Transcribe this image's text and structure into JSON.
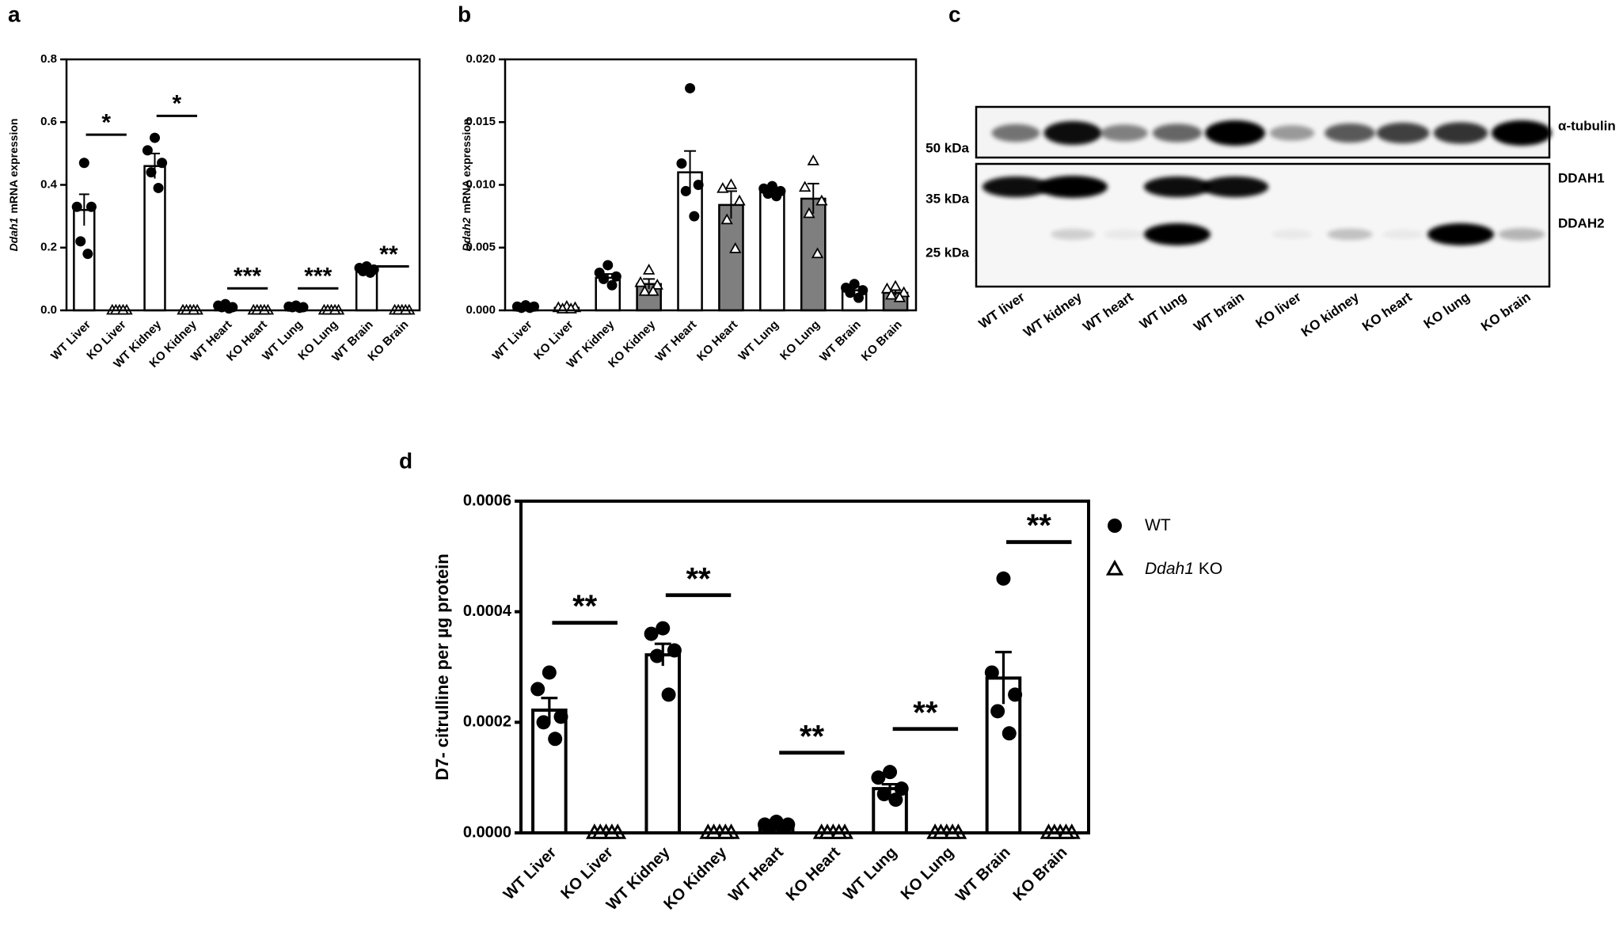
{
  "chart_data": [
    {
      "type": "bar",
      "panel": "a",
      "ylabel": {
        "italic": "Ddah1",
        "text": "mRNA expression"
      },
      "categories": [
        "WT Liver",
        "KO Liver",
        "WT Kidney",
        "KO Kidney",
        "WT Heart",
        "KO Heart",
        "WT Lung",
        "KO Lung",
        "WT Brain",
        "KO Brain"
      ],
      "values": [
        0.32,
        0,
        0.46,
        0,
        0.012,
        0,
        0.011,
        0,
        0.13,
        0
      ],
      "errors": [
        0.05,
        0,
        0.04,
        0,
        0.003,
        0,
        0.002,
        0,
        0.004,
        0
      ],
      "points": [
        [
          0.47,
          0.33,
          0.33,
          0.22,
          0.18
        ],
        [
          0,
          0,
          0,
          0,
          0
        ],
        [
          0.55,
          0.51,
          0.47,
          0.44,
          0.39
        ],
        [
          0,
          0,
          0,
          0,
          0
        ],
        [
          0.02,
          0.015,
          0.01,
          0.01,
          0.006
        ],
        [
          0,
          0,
          0,
          0,
          0
        ],
        [
          0.015,
          0.012,
          0.01,
          0.01,
          0.008
        ],
        [
          0,
          0,
          0,
          0,
          0
        ],
        [
          0.14,
          0.135,
          0.13,
          0.125,
          0.12
        ],
        [
          0,
          0,
          0,
          0,
          0
        ]
      ],
      "bar_colors": [
        "#ffffff",
        "#ffffff",
        "#ffffff",
        "#ffffff",
        "#ffffff",
        "#ffffff",
        "#ffffff",
        "#ffffff",
        "#ffffff",
        "#ffffff"
      ],
      "markers": [
        "circle",
        "triangle",
        "circle",
        "triangle",
        "circle",
        "triangle",
        "circle",
        "triangle",
        "circle",
        "triangle"
      ],
      "significance": [
        "*",
        "*",
        "***",
        "***",
        "**"
      ],
      "significance_y": [
        0.56,
        0.62,
        0.07,
        0.07,
        0.14
      ],
      "ylim": [
        0,
        0.8
      ],
      "yticks": [
        {
          "value": 0,
          "label": "0.0"
        },
        0.2,
        0.4,
        0.6,
        0.8
      ]
    },
    {
      "type": "bar",
      "panel": "b",
      "ylabel": {
        "italic": "Ddah2",
        "text": "mRNA expression"
      },
      "categories": [
        "WT Liver",
        "KO Liver",
        "WT Kidney",
        "KO Kidney",
        "WT Heart",
        "KO Heart",
        "WT Lung",
        "KO Lung",
        "WT Brain",
        "KO Brain"
      ],
      "values": [
        0.0003,
        0.0002,
        0.0026,
        0.0021,
        0.011,
        0.0084,
        0.0095,
        0.0089,
        0.0016,
        0.0014
      ],
      "errors": [
        0.0001,
        0.0001,
        0.0003,
        0.0004,
        0.0017,
        0.0011,
        0.0003,
        0.0012,
        0.0003,
        0.0002
      ],
      "points": [
        [
          0.0004,
          0.0003,
          0.0003,
          0.0002,
          0.0002
        ],
        [
          0.0003,
          0.0002,
          0.0002,
          0.0001,
          0.0001
        ],
        [
          0.0036,
          0.003,
          0.0027,
          0.0025,
          0.002
        ],
        [
          0.0032,
          0.0022,
          0.002,
          0.0015,
          0.0015
        ],
        [
          0.0177,
          0.0117,
          0.01,
          0.0095,
          0.0075
        ],
        [
          0.01,
          0.0097,
          0.0087,
          0.0072,
          0.0049
        ],
        [
          0.0099,
          0.0097,
          0.0095,
          0.0093,
          0.0091
        ],
        [
          0.0119,
          0.0098,
          0.0087,
          0.0077,
          0.0045
        ],
        [
          0.0021,
          0.0018,
          0.0016,
          0.0014,
          0.001
        ],
        [
          0.0019,
          0.0017,
          0.0014,
          0.0012,
          0.001
        ]
      ],
      "bar_colors": [
        "#ffffff",
        "#ffffff",
        "#ffffff",
        "#7f7f7f",
        "#ffffff",
        "#7f7f7f",
        "#ffffff",
        "#7f7f7f",
        "#ffffff",
        "#7f7f7f"
      ],
      "markers": [
        "circle",
        "triangle",
        "circle",
        "triangle",
        "circle",
        "triangle",
        "circle",
        "triangle",
        "circle",
        "triangle"
      ],
      "ylim": [
        0,
        0.02
      ],
      "yticks": [
        {
          "value": 0,
          "label": "0.000"
        },
        {
          "value": 0.005,
          "label": "0.005"
        },
        {
          "value": 0.01,
          "label": "0.010"
        },
        {
          "value": 0.015,
          "label": "0.015"
        },
        {
          "value": 0.02,
          "label": "0.020"
        }
      ]
    },
    {
      "type": "blot",
      "panel": "c",
      "lanes": [
        "WT liver",
        "WT kidney",
        "WT heart",
        "WT lung",
        "WT brain",
        "KO liver",
        "KO kidney",
        "KO heart",
        "KO lung",
        "KO brain"
      ],
      "size_markers": [
        "50 kDa",
        "35 kDa",
        "25 kDa"
      ],
      "bands": [
        "α-tubulin",
        "DDAH1",
        "DDAH2"
      ]
    },
    {
      "type": "bar",
      "panel": "d",
      "ylabel": {
        "italic": "",
        "text": "D7- citrulline per µg protein"
      },
      "categories": [
        "WT Liver",
        "KO Liver",
        "WT Kidney",
        "KO Kidney",
        "WT Heart",
        "KO Heart",
        "WT Lung",
        "KO Lung",
        "WT Brain",
        "KO Brain"
      ],
      "values": [
        0.000222,
        0,
        0.000322,
        0,
        1.5e-05,
        0,
        8e-05,
        0,
        0.00028,
        0
      ],
      "errors": [
        2.2e-05,
        0,
        2e-05,
        0,
        2e-06,
        0,
        8e-06,
        0,
        4.7e-05,
        0
      ],
      "points": [
        [
          0.00029,
          0.00026,
          0.00021,
          0.0002,
          0.00017
        ],
        [
          0,
          0,
          0,
          0,
          0
        ],
        [
          0.00037,
          0.00036,
          0.00033,
          0.00032,
          0.00025
        ],
        [
          0,
          0,
          0,
          0,
          0
        ],
        [
          2e-05,
          1.5e-05,
          1.5e-05,
          1.2e-05,
          1e-05
        ],
        [
          0,
          0,
          0,
          0,
          0
        ],
        [
          0.00011,
          0.0001,
          8e-05,
          7e-05,
          6e-05
        ],
        [
          0,
          0,
          0,
          0,
          0
        ],
        [
          0.00046,
          0.00029,
          0.00025,
          0.00022,
          0.00018
        ],
        [
          0,
          0,
          0,
          0,
          0
        ]
      ],
      "bar_colors": [
        "#ffffff",
        "#ffffff",
        "#ffffff",
        "#ffffff",
        "#ffffff",
        "#ffffff",
        "#ffffff",
        "#ffffff",
        "#ffffff",
        "#ffffff"
      ],
      "markers": [
        "circle",
        "triangle",
        "circle",
        "triangle",
        "circle",
        "triangle",
        "circle",
        "triangle",
        "circle",
        "triangle"
      ],
      "significance": [
        "**",
        "**",
        "**",
        "**",
        "**"
      ],
      "significance_y": [
        0.00038,
        0.00043,
        0.000145,
        0.000188,
        0.000526
      ],
      "legend": [
        {
          "marker": "circle",
          "italic": "",
          "name": "WT"
        },
        {
          "marker": "triangle",
          "italic": "Ddah1",
          "name": "KO"
        }
      ],
      "ylim": [
        0,
        0.0006
      ],
      "yticks": [
        {
          "value": 0,
          "label": "0.0000"
        },
        {
          "value": 0.0002,
          "label": "0.0002"
        },
        {
          "value": 0.0004,
          "label": "0.0004"
        },
        {
          "value": 0.0006,
          "label": "0.0006"
        }
      ]
    }
  ]
}
